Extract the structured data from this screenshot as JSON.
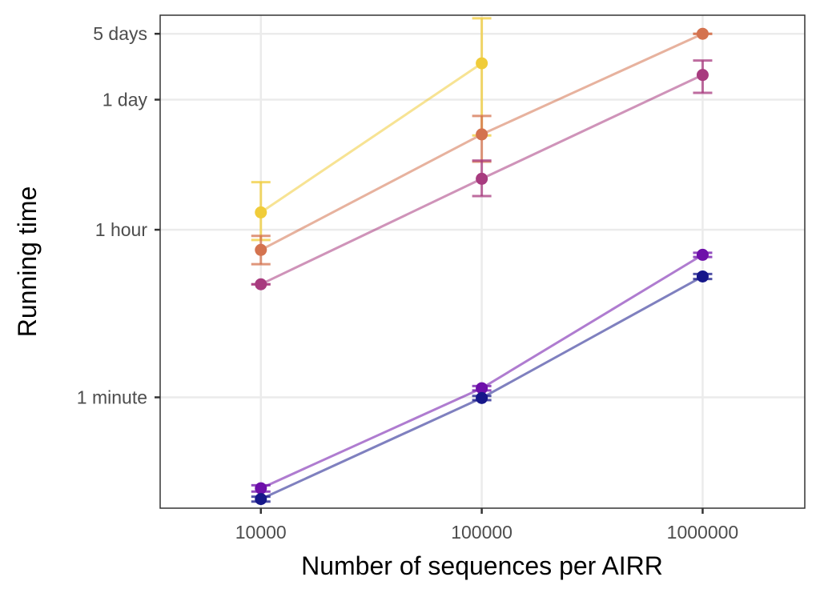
{
  "chart_data": {
    "type": "line",
    "title": "",
    "xlabel": "Number of sequences per AIRR",
    "ylabel": "Running time",
    "x_scale": "log10",
    "y_scale": "log10",
    "y_unit": "seconds",
    "xlim": [
      3500,
      2900000
    ],
    "ylim": [
      4,
      680000
    ],
    "x_ticks": [
      {
        "value": 10000,
        "label": "10000"
      },
      {
        "value": 100000,
        "label": "100000"
      },
      {
        "value": 1000000,
        "label": "1000000"
      }
    ],
    "y_ticks": [
      {
        "value": 60,
        "label": "1 minute"
      },
      {
        "value": 3600,
        "label": "1 hour"
      },
      {
        "value": 86400,
        "label": "1 day"
      },
      {
        "value": 432000,
        "label": "5 days"
      }
    ],
    "grid": true,
    "legend": "none",
    "error_bars": true,
    "series": [
      {
        "color": "#F0CC3A",
        "points": [
          {
            "x": 10000,
            "y": 5500,
            "lo": 2800,
            "hi": 11500
          },
          {
            "x": 100000,
            "y": 210000,
            "lo": 36000,
            "hi": 630000
          }
        ]
      },
      {
        "color": "#D4734F",
        "points": [
          {
            "x": 10000,
            "y": 2200,
            "lo": 1550,
            "hi": 3100
          },
          {
            "x": 100000,
            "y": 37000,
            "lo": 19000,
            "hi": 58000
          },
          {
            "x": 1000000,
            "y": 432000,
            "lo": 432000,
            "hi": 432000
          }
        ]
      },
      {
        "color": "#A83B7F",
        "points": [
          {
            "x": 10000,
            "y": 950,
            "lo": 950,
            "hi": 950
          },
          {
            "x": 100000,
            "y": 12500,
            "lo": 8200,
            "hi": 19500
          },
          {
            "x": 1000000,
            "y": 158000,
            "lo": 102000,
            "hi": 225000
          }
        ]
      },
      {
        "color": "#6E10AA",
        "points": [
          {
            "x": 10000,
            "y": 6.5,
            "lo": 6.0,
            "hi": 7.0
          },
          {
            "x": 100000,
            "y": 75,
            "lo": 71,
            "hi": 79
          },
          {
            "x": 1000000,
            "y": 1950,
            "lo": 1850,
            "hi": 2050
          }
        ]
      },
      {
        "color": "#16178A",
        "points": [
          {
            "x": 10000,
            "y": 5.0,
            "lo": 4.7,
            "hi": 5.3
          },
          {
            "x": 100000,
            "y": 59,
            "lo": 56,
            "hi": 62
          },
          {
            "x": 1000000,
            "y": 1150,
            "lo": 1080,
            "hi": 1220
          }
        ]
      }
    ]
  }
}
